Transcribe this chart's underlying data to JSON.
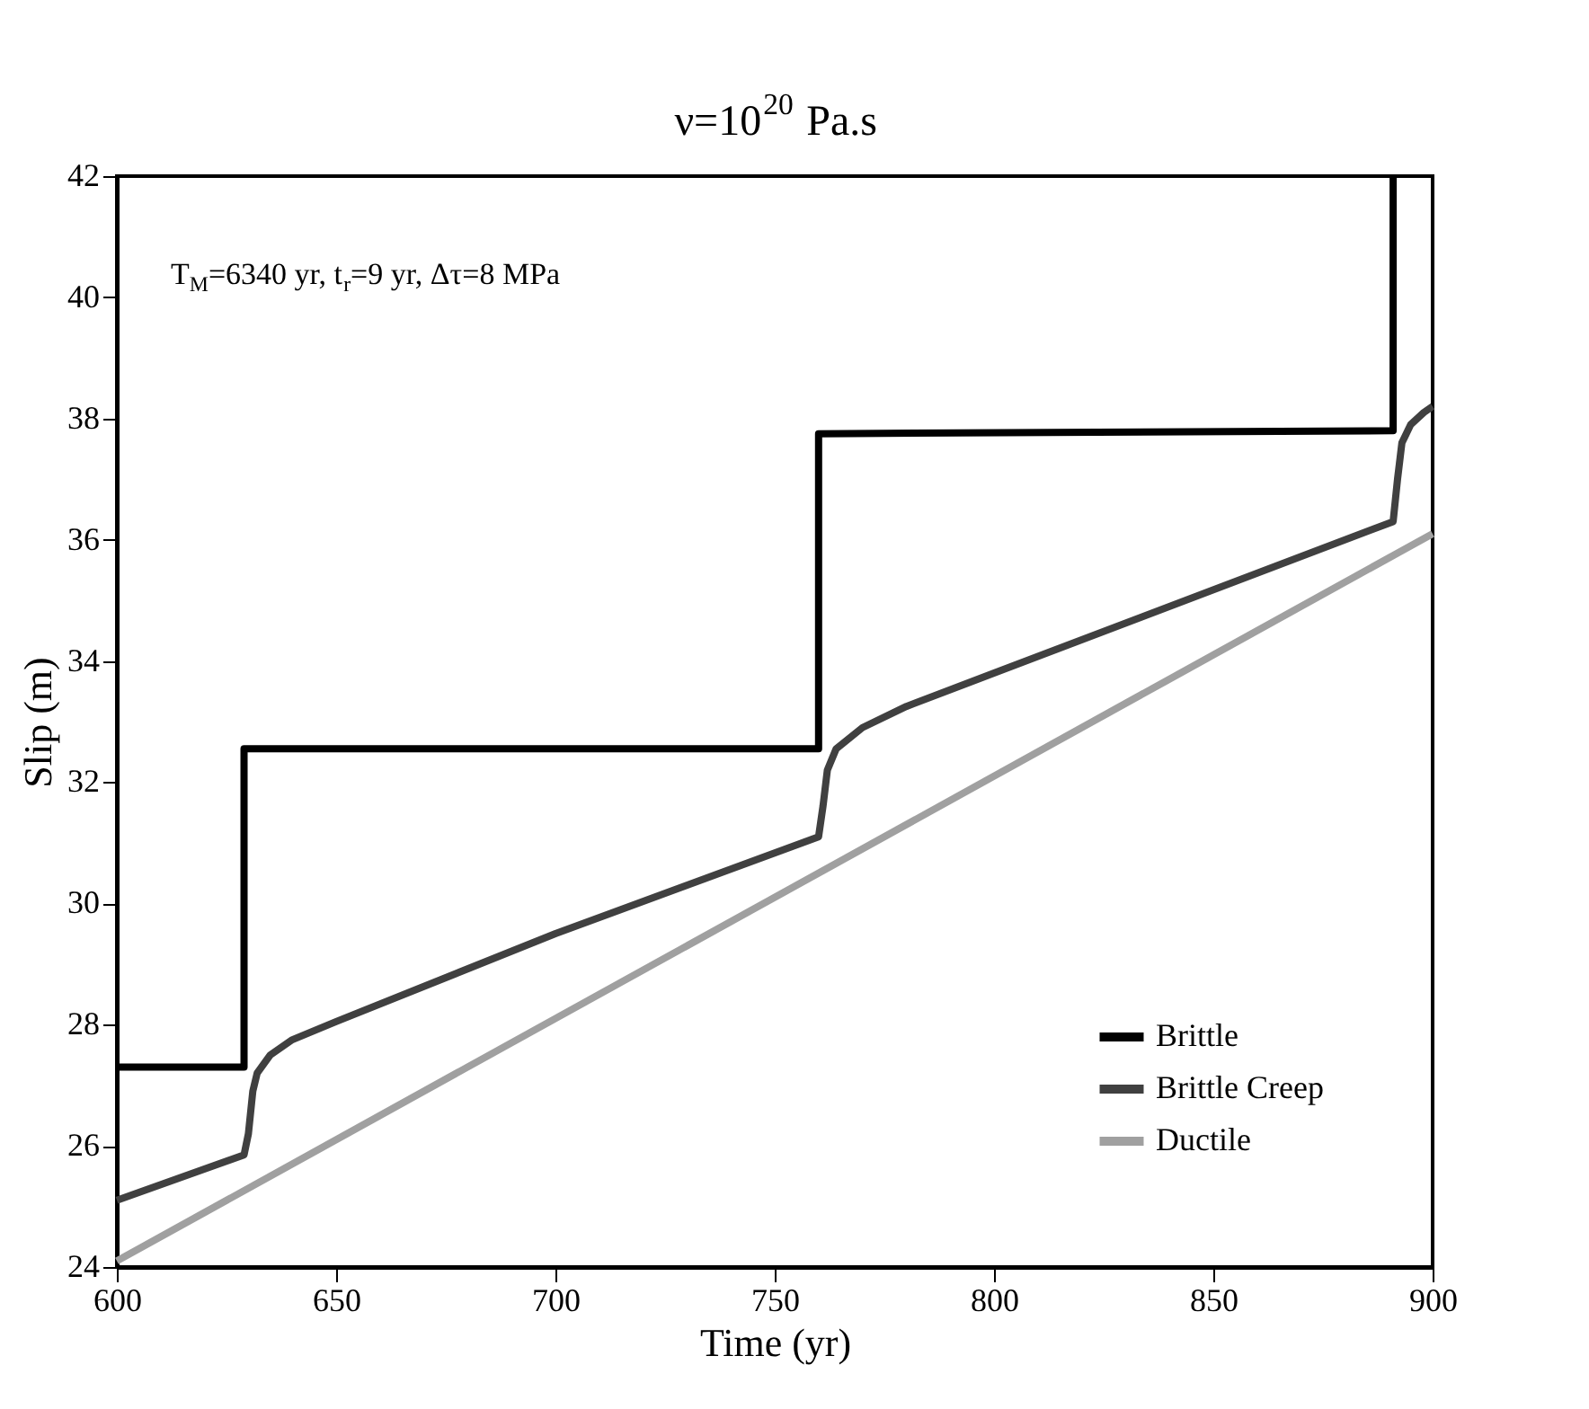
{
  "chart_data": {
    "type": "line",
    "title": "ν=10$^{20}$ Pa.s",
    "xlabel": "Time (yr)",
    "ylabel": "Slip (m)",
    "annotations": [
      "T$_{M}$=6340 yr, t$_{r}$=9 yr, Δτ=8 MPa"
    ],
    "xlim": [
      600,
      900
    ],
    "xticks": [
      600,
      650,
      700,
      750,
      800,
      850,
      900
    ],
    "ylim": [
      24,
      42
    ],
    "yticks": [
      24,
      26,
      28,
      30,
      32,
      34,
      36,
      38,
      40,
      42
    ],
    "grid": false,
    "legend": "bottom right",
    "line_style": "solid",
    "marker": "none",
    "series": [
      {
        "name": "Brittle",
        "color": "#000000",
        "x": [
          600,
          629,
          629,
          760,
          760,
          891,
          891
        ],
        "values": [
          27.3,
          27.3,
          32.55,
          32.55,
          37.75,
          37.8,
          42
        ]
      },
      {
        "name": "Brittle Creep",
        "color": "#404040",
        "x": [
          600,
          629,
          630,
          631,
          632,
          635,
          640,
          650,
          700,
          760,
          761,
          762,
          764,
          770,
          780,
          800,
          891,
          892,
          893,
          895,
          898,
          900
        ],
        "values": [
          25.1,
          25.85,
          26.2,
          26.9,
          27.2,
          27.5,
          27.75,
          28.05,
          29.5,
          31.1,
          31.6,
          32.2,
          32.55,
          32.9,
          33.25,
          33.8,
          36.3,
          37.0,
          37.6,
          37.9,
          38.1,
          38.2
        ]
      },
      {
        "name": "Ductile",
        "color": "#a0a0a0",
        "x": [
          600,
          900
        ],
        "values": [
          24.1,
          36.1
        ]
      }
    ]
  }
}
